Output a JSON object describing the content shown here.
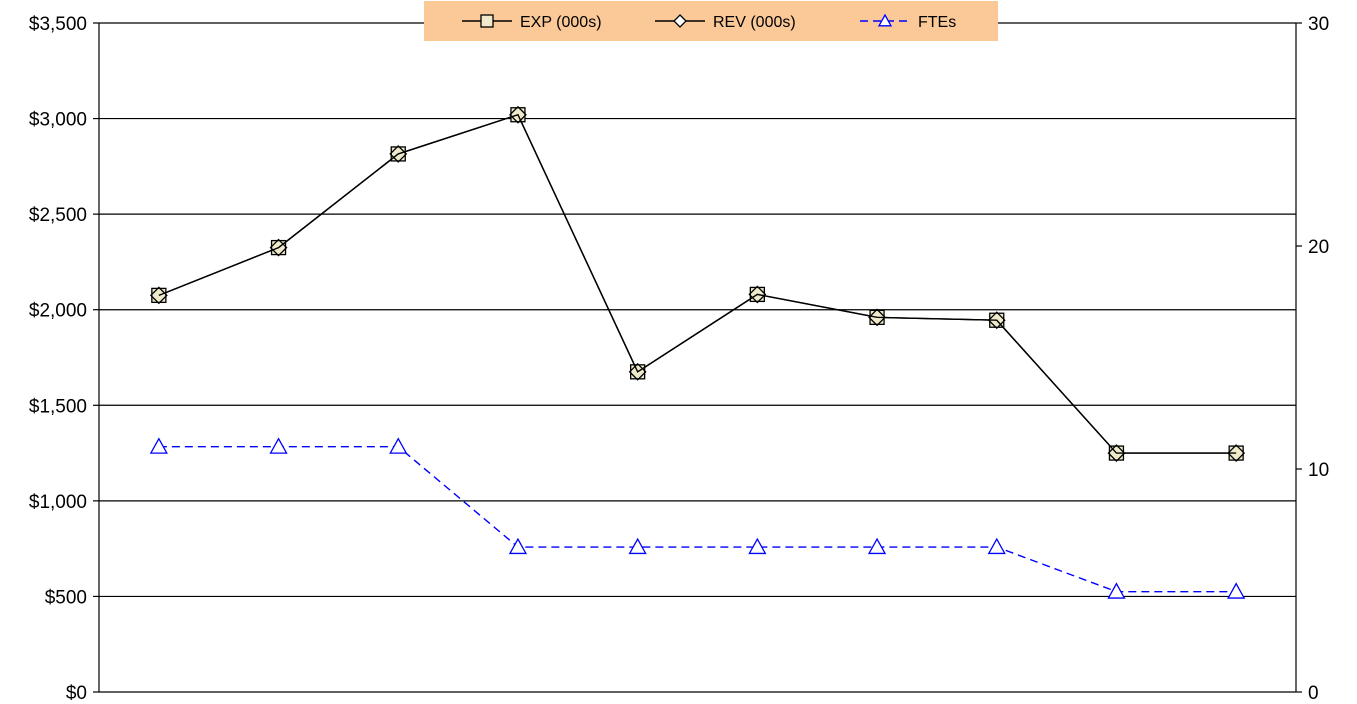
{
  "chart_data": {
    "type": "line",
    "categories": [
      "",
      "",
      "",
      "",
      "",
      "",
      "",
      "",
      "",
      ""
    ],
    "left_axis": {
      "ylim": [
        0,
        3500
      ],
      "ticks": [
        0,
        500,
        1000,
        1500,
        2000,
        2500,
        3000,
        3500
      ],
      "tick_labels": [
        "$0",
        "$500",
        "$1,000",
        "$1,500",
        "$2,000",
        "$2,500",
        "$3,000",
        "$3,500"
      ]
    },
    "right_axis": {
      "ylim": [
        0,
        30
      ],
      "ticks": [
        0,
        10,
        20,
        30
      ],
      "tick_labels": [
        "0",
        "10",
        "20",
        "30"
      ]
    },
    "grid": true,
    "legend_position": "top-center",
    "legend_background": "#fbc898",
    "series": [
      {
        "name": "EXP (000s)",
        "axis": "left",
        "marker": "square",
        "color": "#000000",
        "marker_fill": "#eeeacb",
        "dash": "solid",
        "values": [
          2075,
          2325,
          2815,
          3020,
          1675,
          2080,
          1960,
          1945,
          1250,
          1250
        ]
      },
      {
        "name": "REV (000s)",
        "axis": "left",
        "marker": "diamond",
        "color": "#000000",
        "marker_fill": "none",
        "dash": "solid",
        "values": [
          2075,
          2325,
          2815,
          3020,
          1675,
          2080,
          1960,
          1945,
          1250,
          1250
        ]
      },
      {
        "name": "FTEs",
        "axis": "right",
        "marker": "triangle",
        "color": "#0000ff",
        "marker_fill": "#ffffff",
        "dash": "dashed",
        "values": [
          11,
          11,
          11,
          6.5,
          6.5,
          6.5,
          6.5,
          6.5,
          4.5,
          4.5
        ]
      }
    ]
  }
}
